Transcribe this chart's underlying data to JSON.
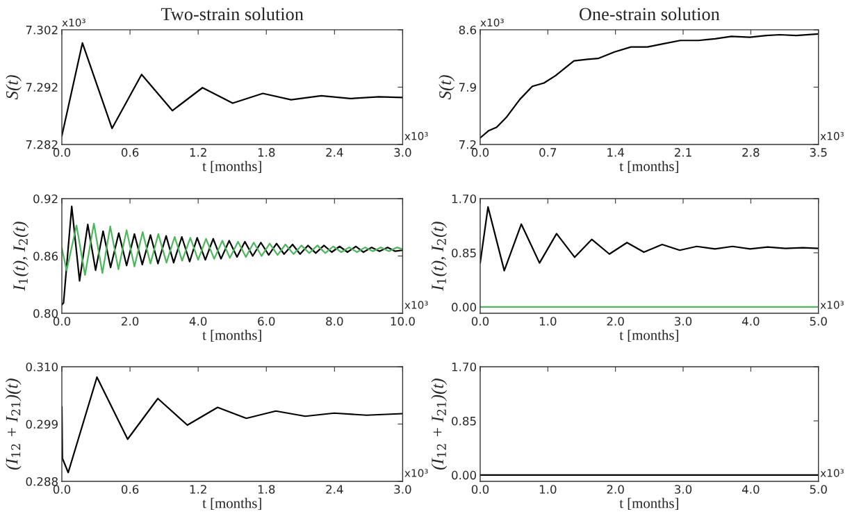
{
  "chart_data": [
    {
      "type": "line",
      "title": "Two-strain solution",
      "xlabel": "t [months]",
      "ylabel": "S(t)",
      "xlim": [
        0,
        3.0
      ],
      "ylim": [
        7.282,
        7.302
      ],
      "xticks": [
        {
          "value": 0,
          "label": "0.0"
        },
        {
          "value": 0.6,
          "label": "0.6"
        },
        {
          "value": 1.2,
          "label": "1.2"
        },
        {
          "value": 1.8,
          "label": "1.8"
        },
        {
          "value": 2.4,
          "label": "2.4"
        },
        {
          "value": 3.0,
          "label": "3.0"
        }
      ],
      "yticks": [
        {
          "value": 7.282,
          "label": "7.282"
        },
        {
          "value": 7.292,
          "label": "7.292"
        },
        {
          "value": 7.302,
          "label": "7.302"
        }
      ],
      "annotations": [
        "x10³",
        "x10³"
      ],
      "series": [
        {
          "color": "#000000",
          "x": [
            0,
            0.181,
            0.442,
            0.702,
            0.973,
            1.238,
            1.504,
            1.769,
            2.018,
            2.283,
            2.541,
            2.79,
            3.0
          ],
          "values": [
            7.2835,
            7.2997,
            7.2848,
            7.2942,
            7.2879,
            7.2919,
            7.2892,
            7.2909,
            7.2898,
            7.2905,
            7.29,
            7.2903,
            7.2902
          ]
        }
      ]
    },
    {
      "type": "line",
      "title": "One-strain solution",
      "xlabel": "t [months]",
      "ylabel": "S(t)",
      "xlim": [
        0,
        3.5
      ],
      "ylim": [
        7.2,
        8.6
      ],
      "xticks": [
        {
          "value": 0,
          "label": "0.0"
        },
        {
          "value": 0.7,
          "label": "0.7"
        },
        {
          "value": 1.4,
          "label": "1.4"
        },
        {
          "value": 2.1,
          "label": "2.1"
        },
        {
          "value": 2.8,
          "label": "2.8"
        },
        {
          "value": 3.5,
          "label": "3.5"
        }
      ],
      "yticks": [
        {
          "value": 7.2,
          "label": "7.2"
        },
        {
          "value": 7.9,
          "label": "7.9"
        },
        {
          "value": 8.6,
          "label": "8.6"
        }
      ],
      "annotations": [
        "x10³",
        "x10³"
      ],
      "series": [
        {
          "color": "#000000",
          "x": [
            0,
            0.09,
            0.17,
            0.27,
            0.41,
            0.54,
            0.66,
            0.78,
            0.97,
            1.11,
            1.22,
            1.39,
            1.56,
            1.73,
            1.9,
            2.07,
            2.26,
            2.43,
            2.6,
            2.79,
            2.96,
            3.1,
            3.27,
            3.5
          ],
          "values": [
            7.28,
            7.37,
            7.41,
            7.53,
            7.75,
            7.91,
            7.95,
            8.04,
            8.22,
            8.24,
            8.25,
            8.33,
            8.39,
            8.39,
            8.43,
            8.47,
            8.47,
            8.49,
            8.52,
            8.51,
            8.53,
            8.54,
            8.53,
            8.55
          ]
        }
      ]
    },
    {
      "type": "line",
      "xlabel": "t [months]",
      "ylabel": "I$_{1}$(t), I$_{2}$(t)",
      "xlim": [
        0,
        10.0
      ],
      "ylim": [
        0.8,
        0.92
      ],
      "xticks": [
        {
          "value": 0,
          "label": "0.0"
        },
        {
          "value": 2,
          "label": "2.0"
        },
        {
          "value": 4,
          "label": "4.0"
        },
        {
          "value": 6,
          "label": "6.0"
        },
        {
          "value": 8,
          "label": "8.0"
        },
        {
          "value": 10,
          "label": "10.0"
        }
      ],
      "yticks": [
        {
          "value": 0.8,
          "label": "0.80"
        },
        {
          "value": 0.86,
          "label": "0.86"
        },
        {
          "value": 0.92,
          "label": "0.92"
        }
      ],
      "annotations": [
        "x10³"
      ],
      "series": [
        {
          "color": "#000000",
          "x": [
            0,
            0.05,
            0.29,
            0.52,
            0.76,
            0.99,
            1.21,
            1.43,
            1.67,
            1.9,
            2.13,
            2.36,
            2.6,
            2.82,
            3.06,
            3.28,
            3.52,
            3.75,
            3.97,
            4.21,
            4.44,
            4.67,
            4.91,
            5.14,
            5.37,
            5.6,
            5.84,
            6.07,
            6.3,
            6.52,
            6.77,
            6.99,
            7.22,
            7.45,
            7.69,
            7.92,
            8.15,
            8.38,
            8.63,
            8.85,
            9.09,
            9.32,
            9.56,
            9.78,
            10.0
          ],
          "values": [
            0.809,
            0.811,
            0.912,
            0.834,
            0.893,
            0.845,
            0.886,
            0.848,
            0.884,
            0.85,
            0.883,
            0.851,
            0.882,
            0.852,
            0.881,
            0.853,
            0.88,
            0.854,
            0.879,
            0.856,
            0.878,
            0.857,
            0.876,
            0.859,
            0.875,
            0.86,
            0.874,
            0.861,
            0.873,
            0.862,
            0.872,
            0.862,
            0.871,
            0.863,
            0.871,
            0.864,
            0.87,
            0.864,
            0.87,
            0.864,
            0.869,
            0.865,
            0.869,
            0.865,
            0.866
          ]
        },
        {
          "color": "#4cb85c",
          "x": [
            0,
            0.14,
            0.43,
            0.68,
            0.94,
            1.19,
            1.42,
            1.66,
            1.9,
            2.13,
            2.37,
            2.6,
            2.83,
            3.07,
            3.31,
            3.53,
            3.77,
            4.0,
            4.23,
            4.47,
            4.71,
            4.93,
            5.17,
            5.4,
            5.63,
            5.86,
            6.1,
            6.33,
            6.56,
            6.8,
            7.03,
            7.26,
            7.5,
            7.73,
            7.96,
            8.2,
            8.43,
            8.66,
            8.9,
            9.13,
            9.36,
            9.6,
            9.83,
            10.0
          ],
          "values": [
            0.868,
            0.845,
            0.892,
            0.84,
            0.894,
            0.842,
            0.891,
            0.846,
            0.887,
            0.849,
            0.885,
            0.852,
            0.883,
            0.853,
            0.88,
            0.855,
            0.879,
            0.856,
            0.878,
            0.857,
            0.876,
            0.858,
            0.875,
            0.859,
            0.874,
            0.86,
            0.873,
            0.861,
            0.872,
            0.862,
            0.871,
            0.863,
            0.871,
            0.863,
            0.87,
            0.864,
            0.869,
            0.864,
            0.869,
            0.865,
            0.869,
            0.865,
            0.869,
            0.867
          ]
        }
      ]
    },
    {
      "type": "line",
      "xlabel": "t [months]",
      "ylabel": "I$_{1}$(t), I$_{2}$(t)",
      "xlim": [
        0,
        5.0
      ],
      "ylim": [
        -0.1,
        1.7
      ],
      "xticks": [
        {
          "value": 0,
          "label": "0.0"
        },
        {
          "value": 1,
          "label": "1.0"
        },
        {
          "value": 2,
          "label": "2.0"
        },
        {
          "value": 3,
          "label": "3.0"
        },
        {
          "value": 4,
          "label": "4.0"
        },
        {
          "value": 5,
          "label": "5.0"
        }
      ],
      "yticks": [
        {
          "value": 0,
          "label": "0.00"
        },
        {
          "value": 0.85,
          "label": "0.85"
        },
        {
          "value": 1.7,
          "label": "1.70"
        }
      ],
      "annotations": [
        "x10³"
      ],
      "series": [
        {
          "color": "#000000",
          "x": [
            0,
            0.116,
            0.356,
            0.608,
            0.877,
            1.129,
            1.397,
            1.649,
            1.91,
            2.17,
            2.42,
            2.69,
            2.95,
            3.2,
            3.47,
            3.73,
            3.99,
            4.25,
            4.51,
            4.77,
            5.0
          ],
          "values": [
            0.69,
            1.57,
            0.57,
            1.3,
            0.69,
            1.15,
            0.78,
            1.06,
            0.83,
            1.01,
            0.86,
            0.98,
            0.89,
            0.95,
            0.91,
            0.95,
            0.91,
            0.94,
            0.92,
            0.93,
            0.92
          ]
        },
        {
          "color": "#4cb85c",
          "x": [
            0,
            5.0
          ],
          "values": [
            0,
            0
          ]
        }
      ]
    },
    {
      "type": "line",
      "xlabel": "t [months]",
      "ylabel": "(I$_{12}$ + I$_{21}$)(t)",
      "xlim": [
        0,
        3.0
      ],
      "ylim": [
        0.288,
        0.31
      ],
      "xticks": [
        {
          "value": 0,
          "label": "0.0"
        },
        {
          "value": 0.6,
          "label": "0.6"
        },
        {
          "value": 1.2,
          "label": "1.2"
        },
        {
          "value": 1.8,
          "label": "1.8"
        },
        {
          "value": 2.4,
          "label": "2.4"
        },
        {
          "value": 3.0,
          "label": "3.0"
        }
      ],
      "yticks": [
        {
          "value": 0.288,
          "label": "0.288"
        },
        {
          "value": 0.299,
          "label": "0.299"
        },
        {
          "value": 0.31,
          "label": "0.310"
        }
      ],
      "annotations": [
        "x10³"
      ],
      "series": [
        {
          "color": "#000000",
          "x": [
            0,
            0.005,
            0.056,
            0.309,
            0.579,
            0.845,
            1.105,
            1.371,
            1.624,
            1.883,
            2.143,
            2.397,
            2.682,
            3.0
          ],
          "values": [
            0.3023,
            0.2924,
            0.2897,
            0.308,
            0.2961,
            0.3039,
            0.2988,
            0.3022,
            0.3001,
            0.3015,
            0.3005,
            0.3011,
            0.3007,
            0.301
          ]
        }
      ]
    },
    {
      "type": "line",
      "xlabel": "t [months]",
      "ylabel": "(I$_{12}$ + I$_{21}$)(t)",
      "xlim": [
        0,
        5.0
      ],
      "ylim": [
        -0.1,
        1.7
      ],
      "xticks": [
        {
          "value": 0,
          "label": "0.0"
        },
        {
          "value": 1,
          "label": "1.0"
        },
        {
          "value": 2,
          "label": "2.0"
        },
        {
          "value": 3,
          "label": "3.0"
        },
        {
          "value": 4,
          "label": "4.0"
        },
        {
          "value": 5,
          "label": "5.0"
        }
      ],
      "yticks": [
        {
          "value": 0,
          "label": "0.00"
        },
        {
          "value": 0.85,
          "label": "0.85"
        },
        {
          "value": 1.7,
          "label": "1.70"
        }
      ],
      "annotations": [
        "x10³"
      ],
      "series": [
        {
          "color": "#000000",
          "x": [
            0,
            5.0
          ],
          "values": [
            0,
            0
          ]
        }
      ]
    }
  ]
}
